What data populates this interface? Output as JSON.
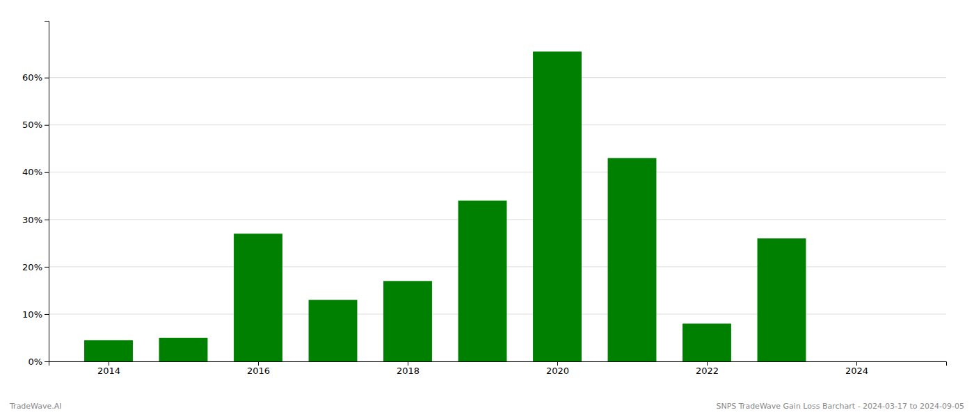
{
  "chart_data": {
    "type": "bar",
    "x": [
      2014,
      2015,
      2016,
      2017,
      2018,
      2019,
      2020,
      2021,
      2022,
      2023
    ],
    "values": [
      0.045,
      0.05,
      0.27,
      0.13,
      0.17,
      0.34,
      0.655,
      0.43,
      0.08,
      0.26
    ],
    "color": "#008000",
    "xlim": [
      2013.2,
      2025.2
    ],
    "xticks": [
      2014,
      2016,
      2018,
      2020,
      2022,
      2024
    ],
    "ylim": [
      0,
      0.72
    ],
    "yticks": [
      {
        "value": 0.0,
        "label": "0%"
      },
      {
        "value": 0.1,
        "label": "10%"
      },
      {
        "value": 0.2,
        "label": "20%"
      },
      {
        "value": 0.3,
        "label": "30%"
      },
      {
        "value": 0.4,
        "label": "40%"
      },
      {
        "value": 0.5,
        "label": "50%"
      },
      {
        "value": 0.6,
        "label": "60%"
      }
    ],
    "grid": true,
    "annotations": [
      "TradeWave.AI",
      "SNPS TradeWave Gain Loss Barchart - 2024-03-17 to 2024-09-05"
    ]
  }
}
